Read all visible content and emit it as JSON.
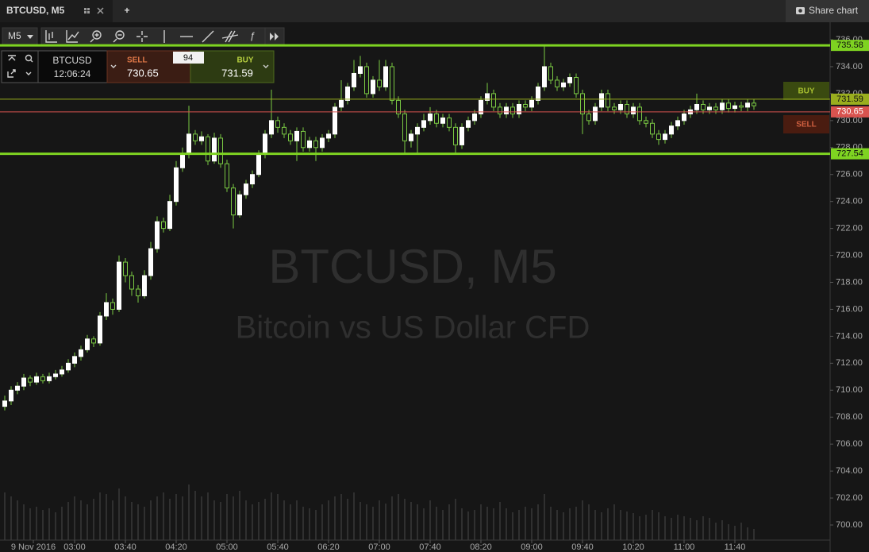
{
  "tab": {
    "title": "BTCUSD, M5",
    "add": "+"
  },
  "share": "Share chart",
  "toolbar": {
    "interval": "M5"
  },
  "trade": {
    "symbol": "BTCUSD",
    "time": "12:06:24",
    "sell_label": "SELL",
    "sell_price": "730.65",
    "spread": "94",
    "buy_label": "BUY",
    "buy_price": "731.59"
  },
  "watermark": {
    "symbol": "BTCUSD, M5",
    "description": "Bitcoin vs US Dollar CFD"
  },
  "side_buttons": {
    "buy": "BUY",
    "sell": "SELL"
  },
  "chart_data": {
    "type": "candlestick",
    "up_color": "#ffffff",
    "down_color": "#161616",
    "wick_color": "#7ac943",
    "volume_color": "#4a4a4a",
    "xlim": [
      -0.75,
      130
    ],
    "ylim": [
      698.88,
      737.18
    ],
    "xticks": [
      {
        "value": 4.5,
        "label": "9 Nov 2016"
      },
      {
        "value": 11,
        "label": "03:00"
      },
      {
        "value": 19,
        "label": "03:40"
      },
      {
        "value": 27,
        "label": "04:20"
      },
      {
        "value": 35,
        "label": "05:00"
      },
      {
        "value": 43,
        "label": "05:40"
      },
      {
        "value": 51,
        "label": "06:20"
      },
      {
        "value": 59,
        "label": "07:00"
      },
      {
        "value": 67,
        "label": "07:40"
      },
      {
        "value": 75,
        "label": "08:20"
      },
      {
        "value": 83,
        "label": "09:00"
      },
      {
        "value": 91,
        "label": "09:40"
      },
      {
        "value": 99,
        "label": "10:20"
      },
      {
        "value": 107,
        "label": "11:00"
      },
      {
        "value": 115,
        "label": "11:40"
      }
    ],
    "yticks": [
      {
        "value": 700,
        "label": "700.00"
      },
      {
        "value": 702,
        "label": "702.00"
      },
      {
        "value": 704,
        "label": "704.00"
      },
      {
        "value": 706,
        "label": "706.00"
      },
      {
        "value": 708,
        "label": "708.00"
      },
      {
        "value": 710,
        "label": "710.00"
      },
      {
        "value": 712,
        "label": "712.00"
      },
      {
        "value": 714,
        "label": "714.00"
      },
      {
        "value": 716,
        "label": "716.00"
      },
      {
        "value": 718,
        "label": "718.00"
      },
      {
        "value": 720,
        "label": "720.00"
      },
      {
        "value": 722,
        "label": "722.00"
      },
      {
        "value": 724,
        "label": "724.00"
      },
      {
        "value": 726,
        "label": "726.00"
      },
      {
        "value": 728,
        "label": "728.00"
      },
      {
        "value": 730,
        "label": "730.00"
      },
      {
        "value": 732,
        "label": "732.00"
      },
      {
        "value": 734,
        "label": "734.00"
      },
      {
        "value": 736,
        "label": "736.00"
      }
    ],
    "levels": [
      {
        "value": 735.58,
        "color": "#7ed321"
      },
      {
        "value": 731.59,
        "color": "#9aae1e"
      },
      {
        "value": 730.65,
        "color": "#d9534f"
      },
      {
        "value": 727.54,
        "color": "#7ed321"
      }
    ],
    "ohlc": [
      [
        708.8,
        709.6,
        708.5,
        709.2
      ],
      [
        709.2,
        710.3,
        708.9,
        710.0
      ],
      [
        710.0,
        710.6,
        709.7,
        710.3
      ],
      [
        710.3,
        711.2,
        710.0,
        710.9
      ],
      [
        710.9,
        711.1,
        710.3,
        710.6
      ],
      [
        710.6,
        711.3,
        710.4,
        711.0
      ],
      [
        711.0,
        711.2,
        710.5,
        710.7
      ],
      [
        710.7,
        711.3,
        710.5,
        711.0
      ],
      [
        711.0,
        711.5,
        710.8,
        711.2
      ],
      [
        711.2,
        711.8,
        711.0,
        711.5
      ],
      [
        711.5,
        712.3,
        711.3,
        712.0
      ],
      [
        712.0,
        712.8,
        711.7,
        712.5
      ],
      [
        712.5,
        713.3,
        712.2,
        713.0
      ],
      [
        713.0,
        714.1,
        712.8,
        713.8
      ],
      [
        713.8,
        714.0,
        713.2,
        713.5
      ],
      [
        713.5,
        715.8,
        713.3,
        715.5
      ],
      [
        715.5,
        717.2,
        715.2,
        716.5
      ],
      [
        716.5,
        716.8,
        715.6,
        716.0
      ],
      [
        716.0,
        720.0,
        715.8,
        719.5
      ],
      [
        719.5,
        719.8,
        718.0,
        718.5
      ],
      [
        718.5,
        718.8,
        717.0,
        717.5
      ],
      [
        717.5,
        717.8,
        716.5,
        717.0
      ],
      [
        717.0,
        718.9,
        716.8,
        718.5
      ],
      [
        718.5,
        721.0,
        718.2,
        720.5
      ],
      [
        720.5,
        722.9,
        720.2,
        722.5
      ],
      [
        722.5,
        722.8,
        721.7,
        722.0
      ],
      [
        722.0,
        724.5,
        721.8,
        724.0
      ],
      [
        724.0,
        727.0,
        723.7,
        726.5
      ],
      [
        726.5,
        728.0,
        726.2,
        727.5
      ],
      [
        727.5,
        731.1,
        727.2,
        729.0
      ],
      [
        729.0,
        729.3,
        728.2,
        728.5
      ],
      [
        728.5,
        729.2,
        728.2,
        728.8
      ],
      [
        728.8,
        729.0,
        726.7,
        727.0
      ],
      [
        727.0,
        729.1,
        726.8,
        728.7
      ],
      [
        728.7,
        729.0,
        726.5,
        726.8
      ],
      [
        726.8,
        727.1,
        724.7,
        725.0
      ],
      [
        725.0,
        725.3,
        722.0,
        723.0
      ],
      [
        723.0,
        724.8,
        722.8,
        724.5
      ],
      [
        724.5,
        725.6,
        724.2,
        725.3
      ],
      [
        725.3,
        726.3,
        725.0,
        726.0
      ],
      [
        726.0,
        727.8,
        725.8,
        727.5
      ],
      [
        727.5,
        729.3,
        727.2,
        729.0
      ],
      [
        729.0,
        732.3,
        728.7,
        730.0
      ],
      [
        730.0,
        730.3,
        729.1,
        729.5
      ],
      [
        729.5,
        729.8,
        728.7,
        729.0
      ],
      [
        729.0,
        729.3,
        728.2,
        728.5
      ],
      [
        728.5,
        729.5,
        727.0,
        729.2
      ],
      [
        729.2,
        729.5,
        727.7,
        728.0
      ],
      [
        728.0,
        728.8,
        727.7,
        728.5
      ],
      [
        728.5,
        728.8,
        727.0,
        728.0
      ],
      [
        728.0,
        729.0,
        727.7,
        728.7
      ],
      [
        728.7,
        729.3,
        728.4,
        729.0
      ],
      [
        729.0,
        731.3,
        728.7,
        731.0
      ],
      [
        731.0,
        733.0,
        730.7,
        731.5
      ],
      [
        731.5,
        732.8,
        731.2,
        732.5
      ],
      [
        732.5,
        734.5,
        732.2,
        733.5
      ],
      [
        733.5,
        734.8,
        733.2,
        734.0
      ],
      [
        734.0,
        734.3,
        731.7,
        732.0
      ],
      [
        732.0,
        733.3,
        731.7,
        733.0
      ],
      [
        733.0,
        734.5,
        732.2,
        732.5
      ],
      [
        732.5,
        734.5,
        732.2,
        734.0
      ],
      [
        734.0,
        734.3,
        731.2,
        731.5
      ],
      [
        731.5,
        731.8,
        730.2,
        730.5
      ],
      [
        730.5,
        730.8,
        727.5,
        728.5
      ],
      [
        728.5,
        729.3,
        728.0,
        729.0
      ],
      [
        729.0,
        729.8,
        727.6,
        729.5
      ],
      [
        729.5,
        730.5,
        729.2,
        730.0
      ],
      [
        730.0,
        731.0,
        729.7,
        730.5
      ],
      [
        730.5,
        730.8,
        729.5,
        729.8
      ],
      [
        729.8,
        730.5,
        729.5,
        730.2
      ],
      [
        730.2,
        730.5,
        729.2,
        729.5
      ],
      [
        729.5,
        729.8,
        727.6,
        728.2
      ],
      [
        728.2,
        729.8,
        727.9,
        729.5
      ],
      [
        729.5,
        730.3,
        729.2,
        730.0
      ],
      [
        730.0,
        730.8,
        729.7,
        730.5
      ],
      [
        730.5,
        731.8,
        730.2,
        731.5
      ],
      [
        731.5,
        732.8,
        731.2,
        732.0
      ],
      [
        732.0,
        732.3,
        730.7,
        731.0
      ],
      [
        731.0,
        731.3,
        730.2,
        730.5
      ],
      [
        730.5,
        731.3,
        730.2,
        731.0
      ],
      [
        731.0,
        731.3,
        730.2,
        730.5
      ],
      [
        730.5,
        731.5,
        730.2,
        731.2
      ],
      [
        731.2,
        731.5,
        730.7,
        731.0
      ],
      [
        731.0,
        731.8,
        730.7,
        731.5
      ],
      [
        731.5,
        732.8,
        731.2,
        732.5
      ],
      [
        732.5,
        735.6,
        732.2,
        734.0
      ],
      [
        734.0,
        734.3,
        732.7,
        733.0
      ],
      [
        733.0,
        733.3,
        732.2,
        732.5
      ],
      [
        732.5,
        733.1,
        732.2,
        732.8
      ],
      [
        732.8,
        733.5,
        732.5,
        733.2
      ],
      [
        733.2,
        733.5,
        731.7,
        732.0
      ],
      [
        732.0,
        732.3,
        729.0,
        730.5
      ],
      [
        730.5,
        730.8,
        729.7,
        730.0
      ],
      [
        730.0,
        731.3,
        729.7,
        731.0
      ],
      [
        731.0,
        732.3,
        730.7,
        732.0
      ],
      [
        732.0,
        732.3,
        730.7,
        731.0
      ],
      [
        731.0,
        731.3,
        730.5,
        730.8
      ],
      [
        730.8,
        731.5,
        730.5,
        731.2
      ],
      [
        731.2,
        731.5,
        730.2,
        730.5
      ],
      [
        730.5,
        731.3,
        730.2,
        731.0
      ],
      [
        731.0,
        731.3,
        729.7,
        730.0
      ],
      [
        730.0,
        730.3,
        729.5,
        729.8
      ],
      [
        729.8,
        730.1,
        728.7,
        729.0
      ],
      [
        729.0,
        729.3,
        728.2,
        728.6
      ],
      [
        728.6,
        729.3,
        728.3,
        729.0
      ],
      [
        729.0,
        729.9,
        728.7,
        729.6
      ],
      [
        729.6,
        730.3,
        729.3,
        730.0
      ],
      [
        730.0,
        730.8,
        729.7,
        730.5
      ],
      [
        730.5,
        731.1,
        730.2,
        730.8
      ],
      [
        730.8,
        732.0,
        730.5,
        731.2
      ],
      [
        731.2,
        731.5,
        730.5,
        730.8
      ],
      [
        730.8,
        731.3,
        730.5,
        731.0
      ],
      [
        731.0,
        731.3,
        730.5,
        730.8
      ],
      [
        730.8,
        731.6,
        730.5,
        731.3
      ],
      [
        731.3,
        731.6,
        730.6,
        730.9
      ],
      [
        730.9,
        731.4,
        730.6,
        731.1
      ],
      [
        731.1,
        731.4,
        730.7,
        731.0
      ],
      [
        731.0,
        731.6,
        730.7,
        731.3
      ],
      [
        731.3,
        731.6,
        730.8,
        731.1
      ]
    ],
    "volume": [
      60,
      55,
      50,
      45,
      40,
      42,
      38,
      40,
      35,
      42,
      48,
      55,
      50,
      45,
      52,
      60,
      58,
      50,
      65,
      55,
      48,
      45,
      42,
      50,
      55,
      60,
      52,
      58,
      55,
      70,
      62,
      55,
      60,
      50,
      48,
      58,
      55,
      62,
      50,
      45,
      48,
      52,
      60,
      58,
      50,
      45,
      50,
      42,
      40,
      38,
      45,
      50,
      55,
      58,
      52,
      60,
      48,
      45,
      42,
      50,
      46,
      55,
      58,
      52,
      48,
      45,
      40,
      50,
      42,
      38,
      45,
      52,
      40,
      36,
      38,
      45,
      42,
      40,
      48,
      40,
      35,
      38,
      42,
      40,
      45,
      58,
      42,
      38,
      35,
      40,
      42,
      50,
      45,
      38,
      35,
      40,
      45,
      38,
      36,
      34,
      30,
      32,
      38,
      35,
      30,
      28,
      32,
      30,
      28,
      25,
      30,
      28,
      22,
      25,
      20,
      18,
      22,
      16,
      14
    ]
  }
}
